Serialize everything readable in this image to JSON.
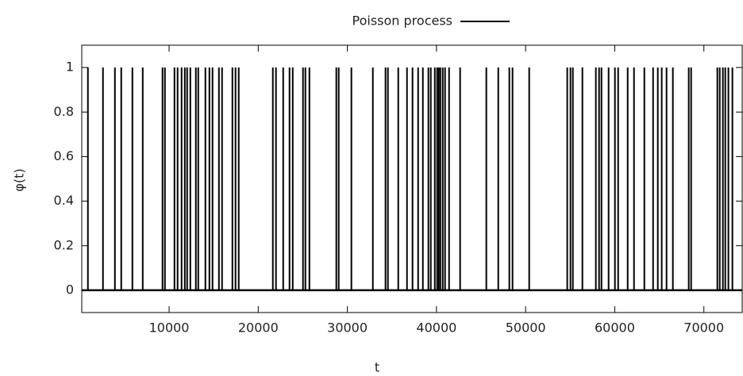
{
  "chart_data": {
    "type": "impulse",
    "xlabel": "t",
    "ylabel": "φ(t)",
    "series": [
      {
        "name": "Poisson process",
        "color": "#000000",
        "x": [
          890,
          2580,
          3920,
          4630,
          5880,
          7040,
          9260,
          9530,
          10600,
          10950,
          11400,
          11760,
          12020,
          12380,
          13000,
          13270,
          14070,
          14520,
          14870,
          15590,
          15940,
          17100,
          17450,
          17810,
          21640,
          21990,
          22800,
          23510,
          23870,
          25020,
          25290,
          25740,
          28760,
          29030,
          30450,
          32860,
          34280,
          34550,
          35710,
          36690,
          37310,
          37940,
          38470,
          39090,
          39360,
          39810,
          40070,
          40250,
          40430,
          40700,
          40960,
          41410,
          42650,
          45590,
          46930,
          48170,
          48530,
          50400,
          54670,
          55030,
          55300,
          56370,
          57880,
          58240,
          58510,
          59310,
          60020,
          60380,
          61450,
          62160,
          63320,
          64300,
          64830,
          65270,
          65810,
          66520,
          68300,
          68570,
          71510,
          71780,
          72130,
          72400,
          72750,
          73200
        ],
        "values": [
          1,
          1,
          1,
          1,
          1,
          1,
          1,
          1,
          1,
          1,
          1,
          1,
          1,
          1,
          1,
          1,
          1,
          1,
          1,
          1,
          1,
          1,
          1,
          1,
          1,
          1,
          1,
          1,
          1,
          1,
          1,
          1,
          1,
          1,
          1,
          1,
          1,
          1,
          1,
          1,
          1,
          1,
          1,
          1,
          1,
          1,
          1,
          1,
          1,
          1,
          1,
          1,
          1,
          1,
          1,
          1,
          1,
          1,
          1,
          1,
          1,
          1,
          1,
          1,
          1,
          1,
          1,
          1,
          1,
          1,
          1,
          1,
          1,
          1,
          1,
          1,
          1,
          1,
          1,
          1,
          1,
          1,
          1,
          1
        ]
      }
    ],
    "xlim": [
      200,
      74300
    ],
    "xticks": [
      10000,
      20000,
      30000,
      40000,
      50000,
      60000,
      70000
    ],
    "ylim": [
      -0.1,
      1.1
    ],
    "yticks": [
      0,
      0.2,
      0.4,
      0.6,
      0.8,
      1
    ],
    "legend": "top-center"
  }
}
